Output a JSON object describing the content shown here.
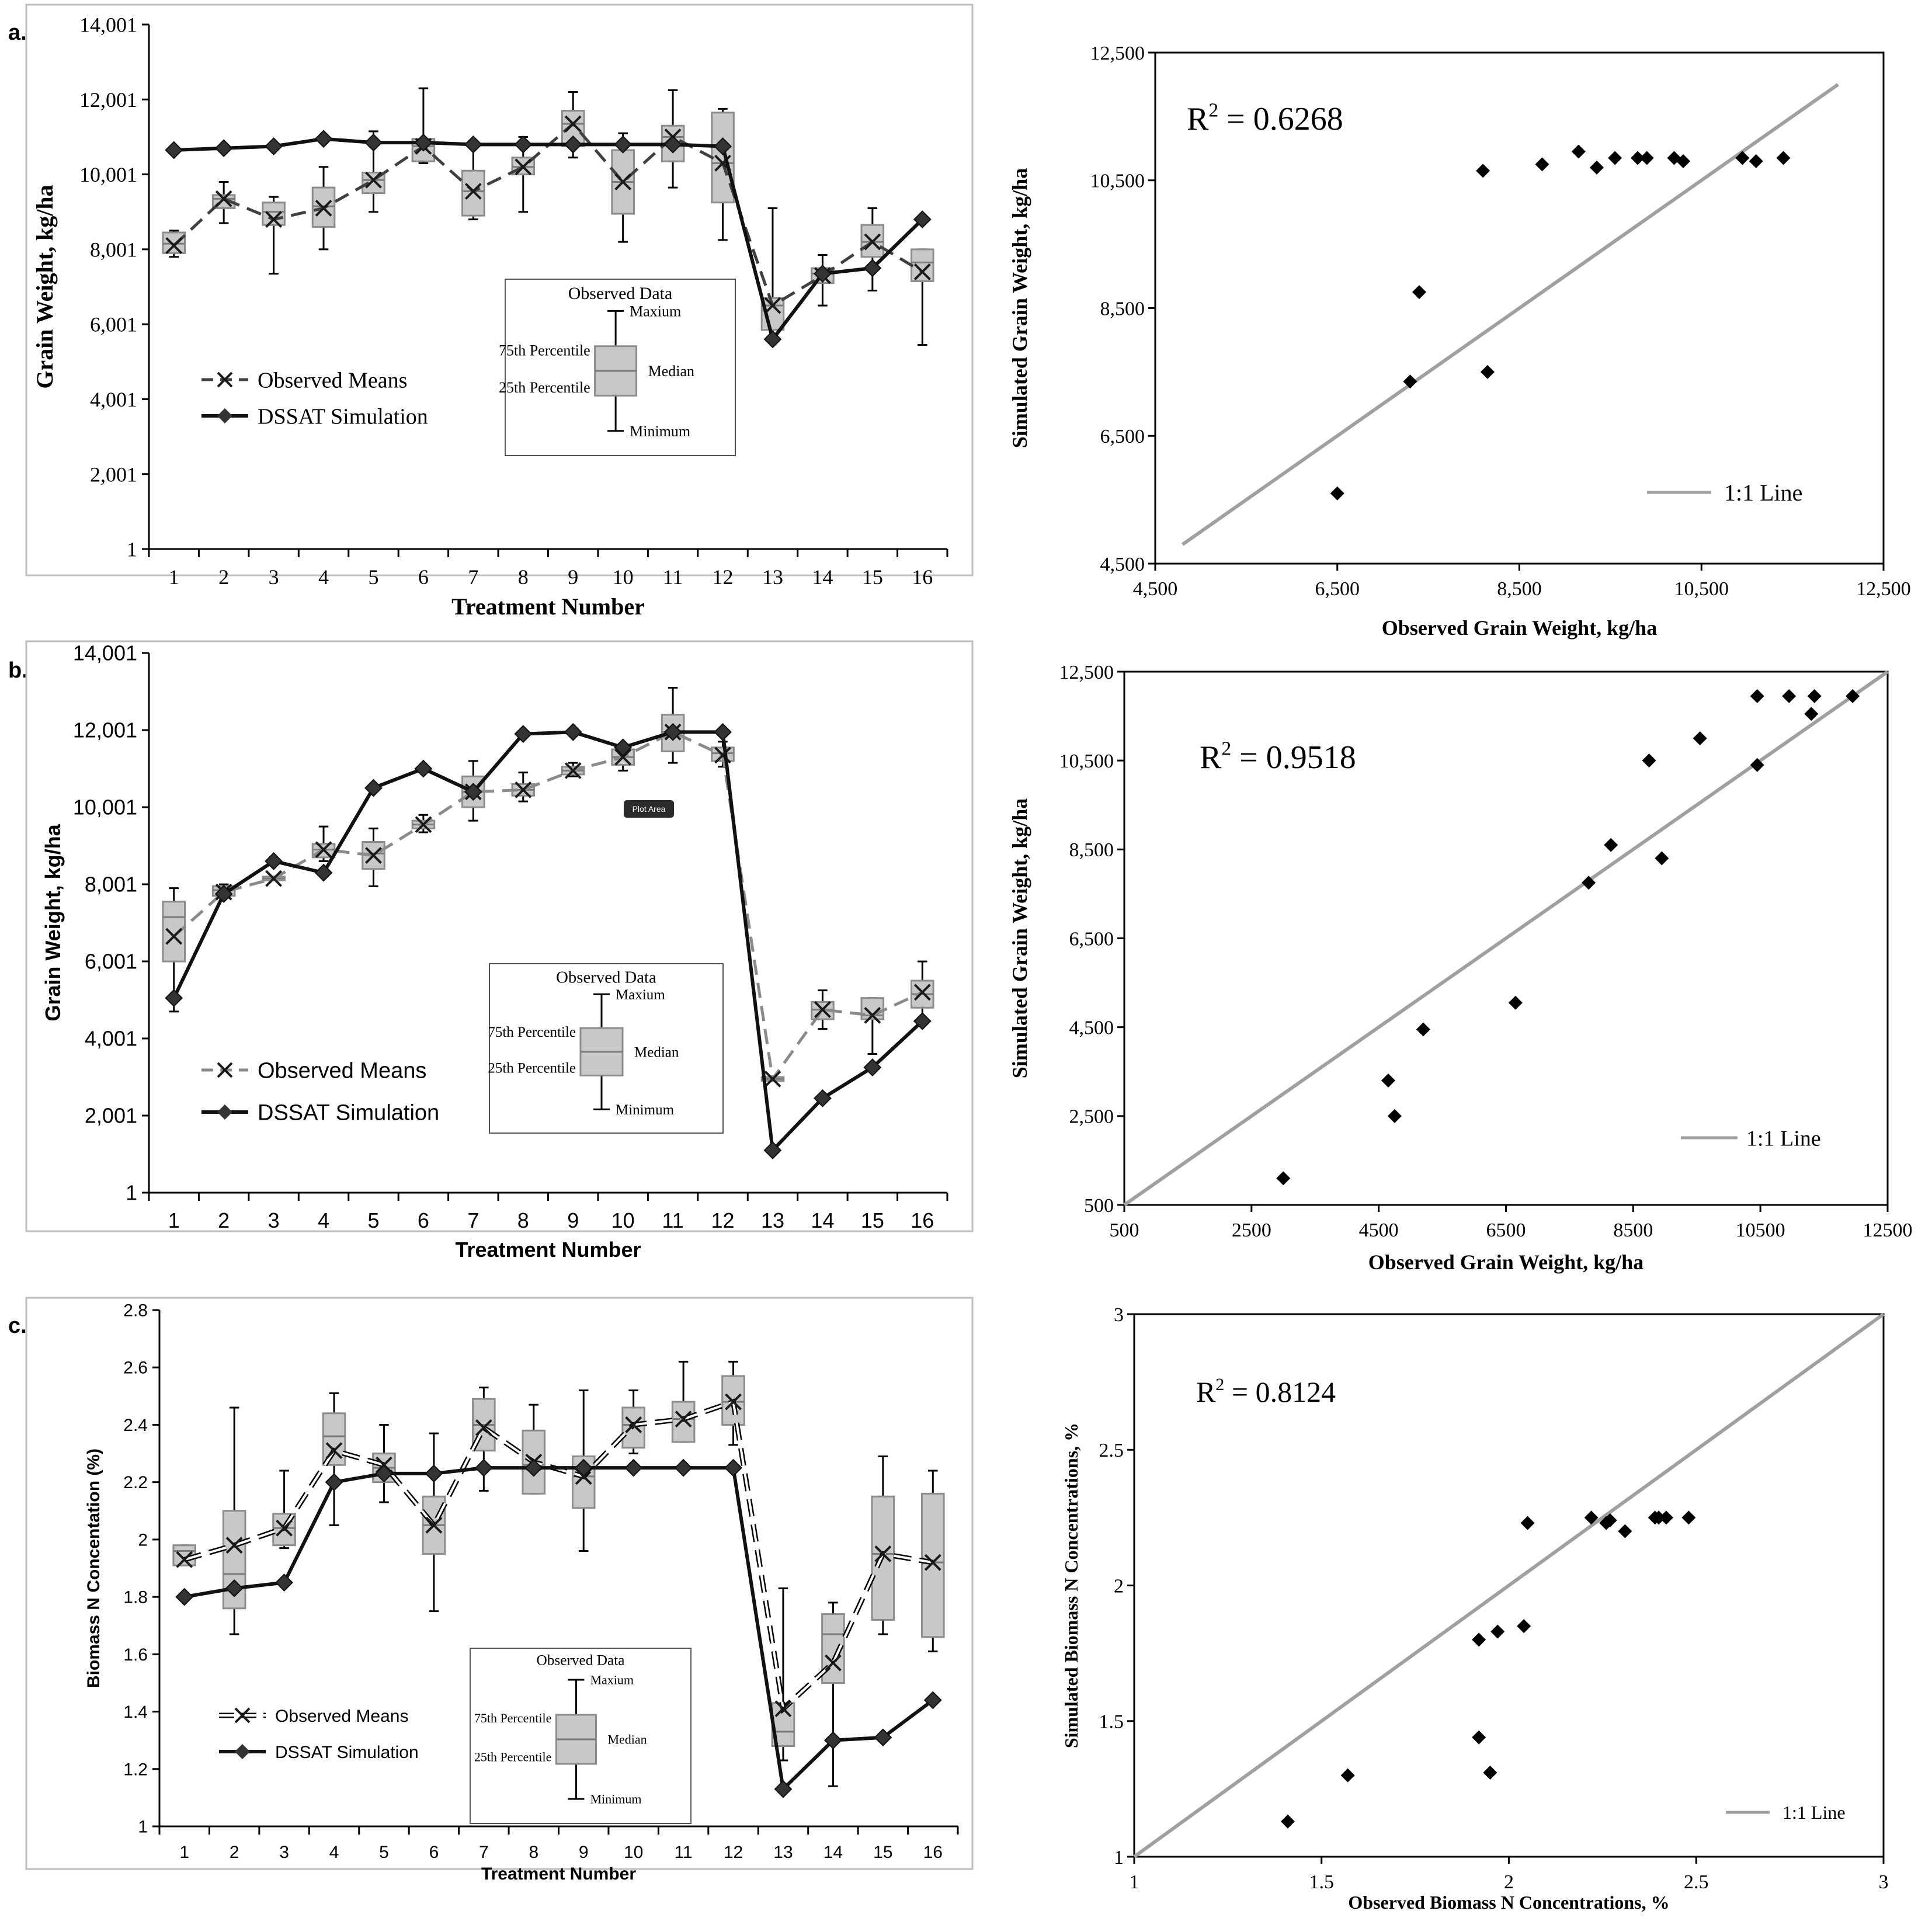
{
  "panel_labels": [
    "a.)",
    "b.)",
    "c.)"
  ],
  "chart_data": [
    {
      "id": "a-ts",
      "type": "box-line",
      "xlabel": "Treatment Number",
      "ylabel": "Grain Weight, kg/ha",
      "categories": [
        "1",
        "2",
        "3",
        "4",
        "5",
        "6",
        "7",
        "8",
        "9",
        "10",
        "11",
        "12",
        "13",
        "14",
        "15",
        "16"
      ],
      "yticks": [
        "1",
        "2,001",
        "4,001",
        "6,001",
        "8,001",
        "10,001",
        "12,001",
        "14,001"
      ],
      "ylim": [
        1,
        14001
      ],
      "series": [
        {
          "name": "Observed Means",
          "values": [
            8100,
            9350,
            8800,
            9100,
            9850,
            10750,
            9550,
            10200,
            11350,
            9800,
            11000,
            10300,
            6500,
            7300,
            8200,
            7400
          ]
        },
        {
          "name": "DSSAT Simulation",
          "values": [
            10650,
            10700,
            10750,
            10950,
            10850,
            10850,
            10800,
            10800,
            10800,
            10800,
            10800,
            10750,
            5600,
            7350,
            7500,
            8800
          ]
        }
      ],
      "boxes": [
        {
          "min": 7800,
          "q1": 7900,
          "median": 8150,
          "q3": 8450,
          "max": 8500
        },
        {
          "min": 8700,
          "q1": 9100,
          "median": 9350,
          "q3": 9450,
          "max": 9800
        },
        {
          "min": 7350,
          "q1": 8650,
          "median": 9000,
          "q3": 9250,
          "max": 9400
        },
        {
          "min": 8000,
          "q1": 8600,
          "median": 9150,
          "q3": 9650,
          "max": 10200
        },
        {
          "min": 9000,
          "q1": 9500,
          "median": 9850,
          "q3": 10050,
          "max": 11150
        },
        {
          "min": 10300,
          "q1": 10350,
          "median": 10750,
          "q3": 10950,
          "max": 12300
        },
        {
          "min": 8800,
          "q1": 8900,
          "median": 9550,
          "q3": 10100,
          "max": 10800
        },
        {
          "min": 9000,
          "q1": 10000,
          "median": 10200,
          "q3": 10450,
          "max": 11000
        },
        {
          "min": 10450,
          "q1": 10750,
          "median": 11350,
          "q3": 11700,
          "max": 12200
        },
        {
          "min": 8200,
          "q1": 8950,
          "median": 9800,
          "q3": 10650,
          "max": 11100
        },
        {
          "min": 9650,
          "q1": 10350,
          "median": 11000,
          "q3": 11300,
          "max": 12250
        },
        {
          "min": 8250,
          "q1": 9250,
          "median": 10300,
          "q3": 11650,
          "max": 11750
        },
        {
          "min": 5700,
          "q1": 5850,
          "median": 6500,
          "q3": 6700,
          "max": 9100
        },
        {
          "min": 6500,
          "q1": 7100,
          "median": 7350,
          "q3": 7500,
          "max": 7850
        },
        {
          "min": 6900,
          "q1": 7800,
          "median": 8200,
          "q3": 8650,
          "max": 9100
        },
        {
          "min": 5450,
          "q1": 7150,
          "median": 7650,
          "q3": 8000,
          "max": 8000
        }
      ],
      "legend": {
        "observed": "Observed Means",
        "simulation": "DSSAT Simulation"
      },
      "box_legend": {
        "title": "Observed Data",
        "max": "Maxium",
        "p75": "75th Percentile",
        "median": "Median",
        "p25": "25th Percentile",
        "min": "Minimum"
      }
    },
    {
      "id": "a-sc",
      "type": "scatter",
      "xlabel": "Observed  Grain Weight,  kg/ha",
      "ylabel": "Simulated Grain Weight,  kg/ha",
      "r2": "0.6268",
      "xlim": [
        4500,
        12500
      ],
      "ylim": [
        4500,
        12500
      ],
      "xticks": [
        "4,500",
        "6,500",
        "8,500",
        "10,500",
        "12,500"
      ],
      "yticks": [
        "4,500",
        "6,500",
        "8,500",
        "10,500",
        "12,500"
      ],
      "line_label": "1:1 Line",
      "one_to_one": [
        [
          4800,
          4800
        ],
        [
          12000,
          12000
        ]
      ],
      "points": [
        [
          6500,
          5600
        ],
        [
          7300,
          7350
        ],
        [
          7400,
          8750
        ],
        [
          8100,
          10650
        ],
        [
          8150,
          7500
        ],
        [
          8750,
          10750
        ],
        [
          9150,
          10950
        ],
        [
          9350,
          10700
        ],
        [
          9550,
          10850
        ],
        [
          9800,
          10850
        ],
        [
          9900,
          10850
        ],
        [
          10200,
          10850
        ],
        [
          10300,
          10800
        ],
        [
          10950,
          10850
        ],
        [
          11100,
          10800
        ],
        [
          11400,
          10850
        ]
      ]
    },
    {
      "id": "b-ts",
      "type": "box-line",
      "xlabel": "Treatment Number",
      "ylabel": "Grain Weight, kg/ha",
      "categories": [
        "1",
        "2",
        "3",
        "4",
        "5",
        "6",
        "7",
        "8",
        "9",
        "10",
        "11",
        "12",
        "13",
        "14",
        "15",
        "16"
      ],
      "yticks": [
        "1",
        "2,001",
        "4,001",
        "6,001",
        "8,001",
        "10,001",
        "12,001",
        "14,001"
      ],
      "ylim": [
        1,
        14001
      ],
      "plot_area_tooltip": "Plot Area",
      "series": [
        {
          "name": "Observed Means",
          "values": [
            6650,
            7800,
            8150,
            8900,
            8750,
            9550,
            10400,
            10450,
            10950,
            11300,
            11950,
            11350,
            2950,
            4750,
            4600,
            5200
          ]
        },
        {
          "name": "DSSAT Simulation",
          "values": [
            5050,
            7750,
            8600,
            8300,
            10500,
            11000,
            10400,
            11900,
            11950,
            11550,
            11950,
            11950,
            1100,
            2450,
            3250,
            4450
          ]
        }
      ],
      "boxes": [
        {
          "min": 4700,
          "q1": 6000,
          "median": 7150,
          "q3": 7550,
          "max": 7900
        },
        {
          "min": 7650,
          "q1": 7700,
          "median": 7850,
          "q3": 7950,
          "max": 8000
        },
        {
          "min": 8100,
          "q1": 8100,
          "median": 8150,
          "q3": 8200,
          "max": 8200
        },
        {
          "min": 8600,
          "q1": 8700,
          "median": 8900,
          "q3": 9050,
          "max": 9500
        },
        {
          "min": 7950,
          "q1": 8400,
          "median": 8800,
          "q3": 9100,
          "max": 9450
        },
        {
          "min": 9350,
          "q1": 9450,
          "median": 9550,
          "q3": 9650,
          "max": 9800
        },
        {
          "min": 9650,
          "q1": 10000,
          "median": 10400,
          "q3": 10800,
          "max": 11200
        },
        {
          "min": 10150,
          "q1": 10300,
          "median": 10450,
          "q3": 10600,
          "max": 10900
        },
        {
          "min": 10800,
          "q1": 10850,
          "median": 10950,
          "q3": 11050,
          "max": 11150
        },
        {
          "min": 10950,
          "q1": 11100,
          "median": 11300,
          "q3": 11500,
          "max": 11550
        },
        {
          "min": 11150,
          "q1": 11450,
          "median": 11950,
          "q3": 12400,
          "max": 13100
        },
        {
          "min": 11050,
          "q1": 11200,
          "median": 11400,
          "q3": 11550,
          "max": 11700
        },
        {
          "min": 2900,
          "q1": 2900,
          "median": 2950,
          "q3": 3000,
          "max": 3000
        },
        {
          "min": 4250,
          "q1": 4500,
          "median": 4750,
          "q3": 4950,
          "max": 5250
        },
        {
          "min": 3600,
          "q1": 4500,
          "median": 4600,
          "q3": 5050,
          "max": 5050
        },
        {
          "min": 4450,
          "q1": 4800,
          "median": 5150,
          "q3": 5500,
          "max": 6000
        }
      ],
      "legend": {
        "observed": "Observed Means",
        "simulation": "DSSAT Simulation"
      },
      "box_legend": {
        "title": "Observed Data",
        "max": "Maxium",
        "p75": "75th Percentile",
        "median": "Median",
        "p25": "25th Percentile",
        "min": "Minimum"
      }
    },
    {
      "id": "b-sc",
      "type": "scatter",
      "xlabel": "Observed Grain Weight,   kg/ha",
      "ylabel": "Simulated Grain Weight,  kg/ha",
      "r2": "0.9518",
      "xlim": [
        500,
        12500
      ],
      "ylim": [
        500,
        12500
      ],
      "xticks": [
        "500",
        "2500",
        "4500",
        "6500",
        "8500",
        "10500",
        "12500"
      ],
      "yticks": [
        "500",
        "2,500",
        "4,500",
        "6,500",
        "8,500",
        "10,500",
        "12,500"
      ],
      "line_label": "1:1 Line",
      "one_to_one": [
        [
          500,
          500
        ],
        [
          12500,
          12500
        ]
      ],
      "points": [
        [
          3000,
          1100
        ],
        [
          4650,
          3300
        ],
        [
          4750,
          2500
        ],
        [
          5200,
          4450
        ],
        [
          6650,
          5050
        ],
        [
          7800,
          7750
        ],
        [
          8150,
          8600
        ],
        [
          8750,
          10500
        ],
        [
          8950,
          8300
        ],
        [
          9550,
          11000
        ],
        [
          10450,
          10400
        ],
        [
          10450,
          11950
        ],
        [
          10950,
          11950
        ],
        [
          11300,
          11550
        ],
        [
          11350,
          11950
        ],
        [
          11950,
          11950
        ]
      ]
    },
    {
      "id": "c-ts",
      "type": "box-line",
      "xlabel": "Treatment Number",
      "ylabel": "Biomass N Concentation (%)",
      "categories": [
        "1",
        "2",
        "3",
        "4",
        "5",
        "6",
        "7",
        "8",
        "9",
        "10",
        "11",
        "12",
        "13",
        "14",
        "15",
        "16"
      ],
      "yticks": [
        "1",
        "1.2",
        "1.4",
        "1.6",
        "1.8",
        "2",
        "2.2",
        "2.4",
        "2.6",
        "2.8"
      ],
      "ylim": [
        1,
        2.8
      ],
      "series": [
        {
          "name": "Observed Means",
          "values": [
            1.93,
            1.98,
            2.04,
            2.31,
            2.26,
            2.05,
            2.39,
            2.27,
            2.22,
            2.4,
            2.42,
            2.48,
            1.41,
            1.57,
            1.95,
            1.92
          ]
        },
        {
          "name": "DSSAT Simulation",
          "values": [
            1.8,
            1.83,
            1.85,
            2.2,
            2.23,
            2.23,
            2.25,
            2.25,
            2.25,
            2.25,
            2.25,
            2.25,
            1.13,
            1.3,
            1.31,
            1.44
          ]
        }
      ],
      "boxes": [
        {
          "min": 1.91,
          "q1": 1.91,
          "median": 1.96,
          "q3": 1.98,
          "max": 1.98
        },
        {
          "min": 1.67,
          "q1": 1.76,
          "median": 1.88,
          "q3": 2.1,
          "max": 2.46
        },
        {
          "min": 1.97,
          "q1": 1.98,
          "median": 2.04,
          "q3": 2.09,
          "max": 2.24
        },
        {
          "min": 2.05,
          "q1": 2.26,
          "median": 2.36,
          "q3": 2.44,
          "max": 2.51
        },
        {
          "min": 2.13,
          "q1": 2.2,
          "median": 2.25,
          "q3": 2.3,
          "max": 2.4
        },
        {
          "min": 1.75,
          "q1": 1.95,
          "median": 2.05,
          "q3": 2.15,
          "max": 2.37
        },
        {
          "min": 2.17,
          "q1": 2.31,
          "median": 2.4,
          "q3": 2.49,
          "max": 2.53
        },
        {
          "min": 2.16,
          "q1": 2.16,
          "median": 2.26,
          "q3": 2.38,
          "max": 2.47
        },
        {
          "min": 1.96,
          "q1": 2.11,
          "median": 2.22,
          "q3": 2.29,
          "max": 2.52
        },
        {
          "min": 2.3,
          "q1": 2.32,
          "median": 2.4,
          "q3": 2.46,
          "max": 2.52
        },
        {
          "min": 2.34,
          "q1": 2.34,
          "median": 2.42,
          "q3": 2.48,
          "max": 2.62
        },
        {
          "min": 2.33,
          "q1": 2.4,
          "median": 2.48,
          "q3": 2.57,
          "max": 2.62
        },
        {
          "min": 1.23,
          "q1": 1.28,
          "median": 1.33,
          "q3": 1.43,
          "max": 1.83
        },
        {
          "min": 1.14,
          "q1": 1.5,
          "median": 1.67,
          "q3": 1.74,
          "max": 1.78
        },
        {
          "min": 1.67,
          "q1": 1.72,
          "median": 1.95,
          "q3": 2.15,
          "max": 2.29
        },
        {
          "min": 1.61,
          "q1": 1.66,
          "median": 1.92,
          "q3": 2.16,
          "max": 2.24
        }
      ],
      "legend": {
        "observed": "Observed Means",
        "simulation": "DSSAT Simulation"
      },
      "box_legend": {
        "title": "Observed Data",
        "max": "Maxium",
        "p75": "75th Percentile",
        "median": "Median",
        "p25": "25th Percentile",
        "min": "Minimum"
      }
    },
    {
      "id": "c-sc",
      "type": "scatter",
      "xlabel": "Observed Biomass  N Concentrations, %",
      "ylabel": "Simulated Biomass N Concentrations, %",
      "r2": "0.8124",
      "xlim": [
        1,
        3
      ],
      "ylim": [
        1,
        3
      ],
      "xticks": [
        "1",
        "1.5",
        "2",
        "2.5",
        "3"
      ],
      "yticks": [
        "1",
        "1.5",
        "2",
        "2.5",
        "3"
      ],
      "line_label": "1:1 Line",
      "one_to_one": [
        [
          1,
          1
        ],
        [
          3,
          3
        ]
      ],
      "points": [
        [
          1.41,
          1.13
        ],
        [
          1.57,
          1.3
        ],
        [
          1.92,
          1.44
        ],
        [
          1.92,
          1.8
        ],
        [
          1.95,
          1.31
        ],
        [
          1.97,
          1.83
        ],
        [
          2.04,
          1.85
        ],
        [
          2.05,
          2.23
        ],
        [
          2.22,
          2.25
        ],
        [
          2.26,
          2.23
        ],
        [
          2.27,
          2.24
        ],
        [
          2.31,
          2.2
        ],
        [
          2.39,
          2.25
        ],
        [
          2.4,
          2.25
        ],
        [
          2.42,
          2.25
        ],
        [
          2.48,
          2.25
        ]
      ]
    }
  ]
}
